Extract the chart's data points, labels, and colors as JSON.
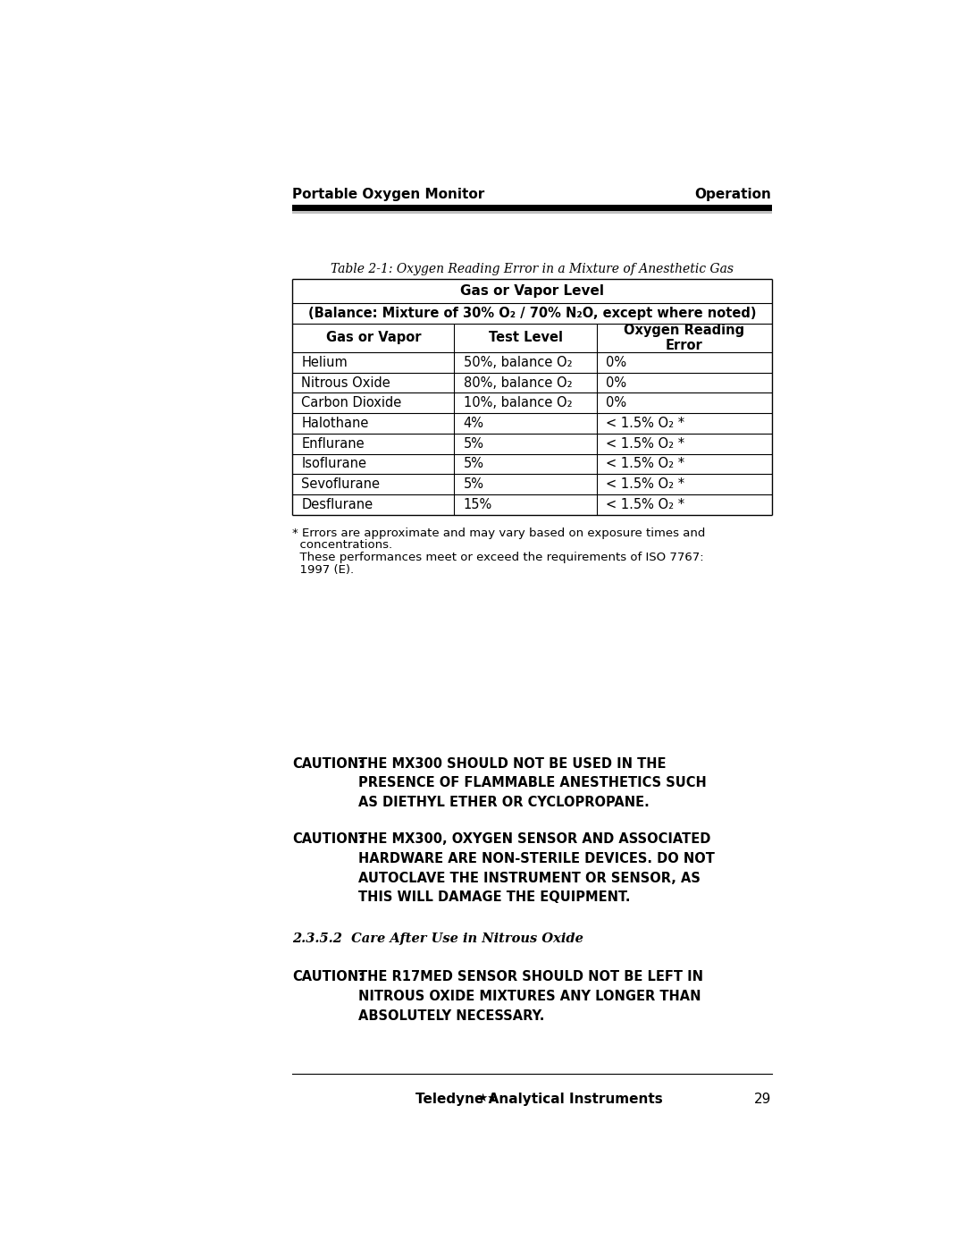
{
  "page_width": 10.8,
  "page_height": 13.97,
  "bg_color": "#ffffff",
  "header_left": "Portable Oxygen Monitor",
  "header_right": "Operation",
  "header_bar_color": "#000000",
  "table_caption": "Table 2-1: Oxygen Reading Error in a Mixture of Anesthetic Gas",
  "table_header1": "Gas or Vapor Level",
  "table_header2": "(Balance: Mixture of 30% O₂ / 70% N₂O, except where noted)",
  "col_headers": [
    "Gas or Vapor",
    "Test Level",
    "Oxygen Reading\nError"
  ],
  "rows": [
    [
      "Helium",
      "50%, balance O₂",
      "0%"
    ],
    [
      "Nitrous Oxide",
      "80%, balance O₂",
      "0%"
    ],
    [
      "Carbon Dioxide",
      "10%, balance O₂",
      "0%"
    ],
    [
      "Halothane",
      "4%",
      "< 1.5% O₂ *"
    ],
    [
      "Enflurane",
      "5%",
      "< 1.5% O₂ *"
    ],
    [
      "Isoflurane",
      "5%",
      "< 1.5% O₂ *"
    ],
    [
      "Sevoflurane",
      "5%",
      "< 1.5% O₂ *"
    ],
    [
      "Desflurane",
      "15%",
      "< 1.5% O₂ *"
    ]
  ],
  "footnote1a": "* Errors are approximate and may vary based on exposure times and",
  "footnote1b": "  concentrations.",
  "footnote2a": "  These performances meet or exceed the requirements of ISO 7767:",
  "footnote2b": "  1997 (E).",
  "caution1_label": "CAUTION:",
  "caution1_text": "THE MX300 SHOULD NOT BE USED IN THE\nPRESENCE OF FLAMMABLE ANESTHETICS SUCH\nAS DIETHYL ETHER OR CYCLOPROPANE.",
  "caution2_label": "CAUTION:",
  "caution2_text": "THE MX300, OXYGEN SENSOR AND ASSOCIATED\nHARDWARE ARE NON-STERILE DEVICES. DO NOT\nAUTOCLAVE THE INSTRUMENT OR SENSOR, AS\nTHIS WILL DAMAGE THE EQUIPMENT.",
  "section_heading": "2.3.5.2  Care After Use in Nitrous Oxide",
  "caution3_label": "CAUTION:",
  "caution3_text": "THE R17MED SENSOR SHOULD NOT BE LEFT IN\nNITROUS OXIDE MIXTURES ANY LONGER THAN\nABSOLUTELY NECESSARY.",
  "footer_text": "Teledyne Analytical Instruments",
  "footer_page": "29",
  "text_color": "#000000"
}
